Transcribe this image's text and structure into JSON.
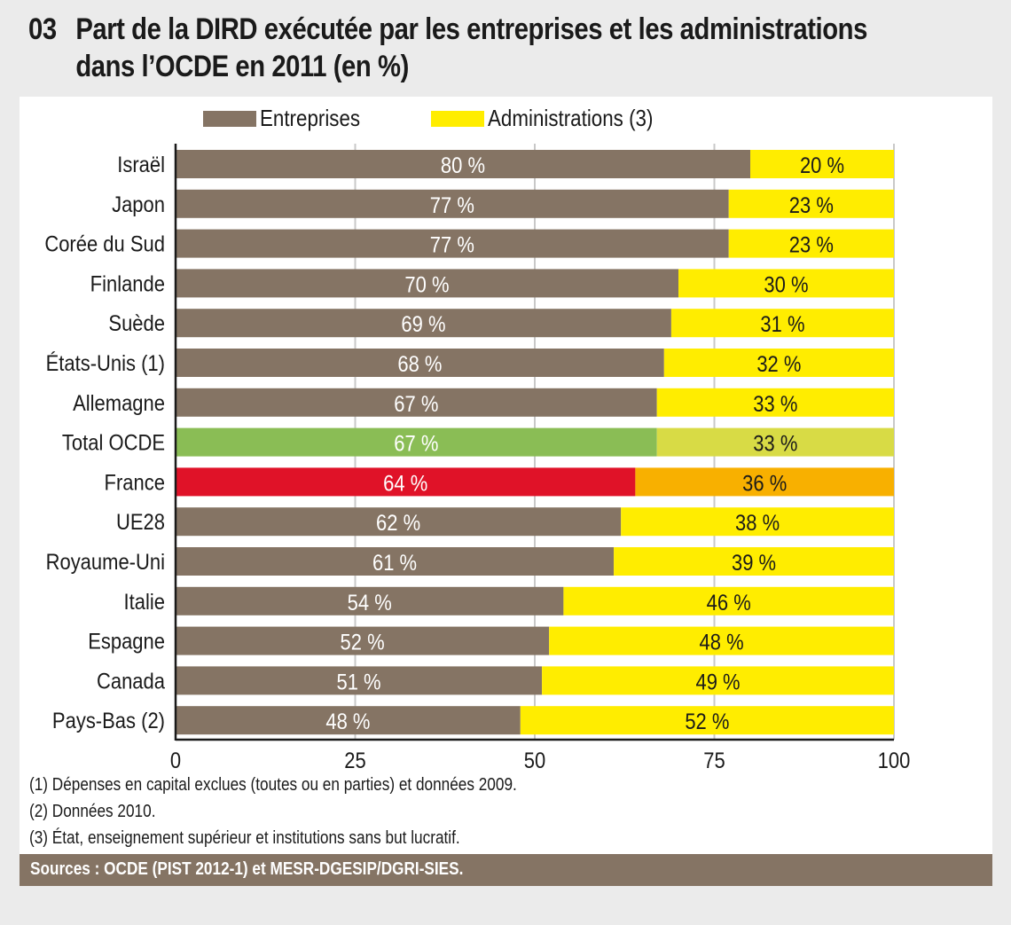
{
  "header": {
    "number": "03",
    "title_line1": "Part de la DIRD exécutée par les entreprises et les administrations",
    "title_line2": "dans l’OCDE en 2011 (en %)"
  },
  "colors": {
    "entreprises": "#857464",
    "administrations": "#ffed00",
    "total_entreprises": "#8abd55",
    "total_administrations": "#d8db45",
    "france_entreprises": "#e01228",
    "france_administrations": "#f8b000",
    "gridline": "#c8c8c8",
    "axis": "#1a1a1a"
  },
  "chart_data": {
    "type": "bar",
    "orientation": "horizontal",
    "stacked": true,
    "title": "Part de la DIRD exécutée par les entreprises et les administrations dans l’OCDE en 2011 (en %)",
    "xlabel": "",
    "ylabel": "",
    "xlim": [
      0,
      100
    ],
    "xticks": [
      0,
      25,
      50,
      75,
      100
    ],
    "grid": true,
    "legend_position": "top",
    "categories": [
      "Israël",
      "Japon",
      "Corée du Sud",
      "Finlande",
      "Suède",
      "États-Unis (1)",
      "Allemagne",
      "Total OCDE",
      "France",
      "UE28",
      "Royaume-Uni",
      "Italie",
      "Espagne",
      "Canada",
      "Pays-Bas (2)"
    ],
    "highlight": {
      "Total OCDE": "total",
      "France": "france"
    },
    "series": [
      {
        "name": "Entreprises",
        "values": [
          80,
          77,
          77,
          70,
          69,
          68,
          67,
          67,
          64,
          62,
          61,
          54,
          52,
          51,
          48
        ],
        "labels": [
          "80 %",
          "77 %",
          "77 %",
          "70 %",
          "69 %",
          "68 %",
          "67 %",
          "67 %",
          "64 %",
          "62 %",
          "61 %",
          "54 %",
          "52 %",
          "51 %",
          "48 %"
        ]
      },
      {
        "name": "Administrations (3)",
        "values": [
          20,
          23,
          23,
          30,
          31,
          32,
          33,
          33,
          36,
          38,
          39,
          46,
          48,
          49,
          52
        ],
        "labels": [
          "20 %",
          "23 %",
          "23 %",
          "30 %",
          "31 %",
          "32 %",
          "33 %",
          "33 %",
          "36 %",
          "38 %",
          "39 %",
          "46 %",
          "48 %",
          "49 %",
          "52 %"
        ]
      }
    ]
  },
  "legend": {
    "entreprises": "Entreprises",
    "administrations": "Administrations (3)"
  },
  "notes": [
    "(1) Dépenses en capital exclues (toutes ou en parties) et données 2009.",
    "(2) Données 2010.",
    "(3) État, enseignement supérieur et institutions sans but lucratif."
  ],
  "source": "Sources : OCDE (PIST 2012-1) et MESR-DGESIP/DGRI-SIES."
}
